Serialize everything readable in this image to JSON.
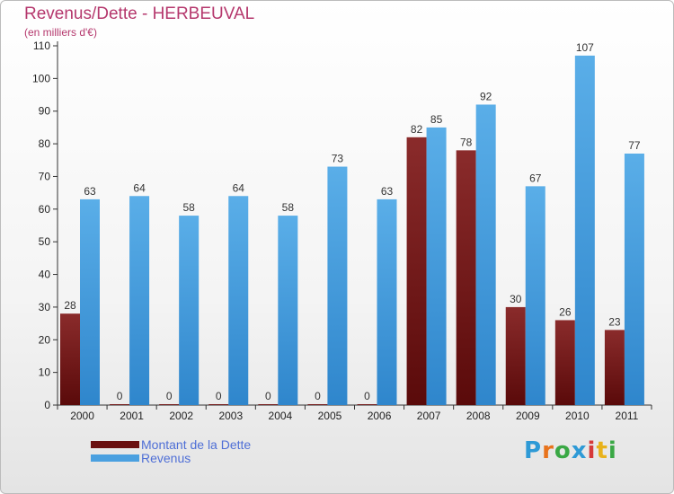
{
  "title": "Revenus/Dette - HERBEUVAL",
  "subtitle": "(en milliers d'€)",
  "colors": {
    "dette": "#7a1a1a",
    "revenus": "#4aa0e0",
    "title": "#b5386d",
    "legend_text": "#4f6fd6"
  },
  "legend": [
    {
      "label": "Montant de la Dette",
      "color": "#6a0f0f"
    },
    {
      "label": "Revenus",
      "color": "#4aa0e0"
    }
  ],
  "logo": {
    "text": "Proxiti"
  },
  "chart_data": {
    "type": "bar",
    "categories": [
      "2000",
      "2001",
      "2002",
      "2003",
      "2004",
      "2005",
      "2006",
      "2007",
      "2008",
      "2009",
      "2010",
      "2011"
    ],
    "series": [
      {
        "name": "Montant de la Dette",
        "values": [
          28,
          0,
          0,
          0,
          0,
          0,
          0,
          82,
          78,
          30,
          26,
          23
        ]
      },
      {
        "name": "Revenus",
        "values": [
          63,
          64,
          58,
          64,
          58,
          73,
          63,
          85,
          92,
          67,
          107,
          77
        ]
      }
    ],
    "ylim": [
      0,
      110
    ],
    "yticks": [
      0,
      10,
      20,
      30,
      40,
      50,
      60,
      70,
      80,
      90,
      100,
      110
    ],
    "grid": false
  }
}
